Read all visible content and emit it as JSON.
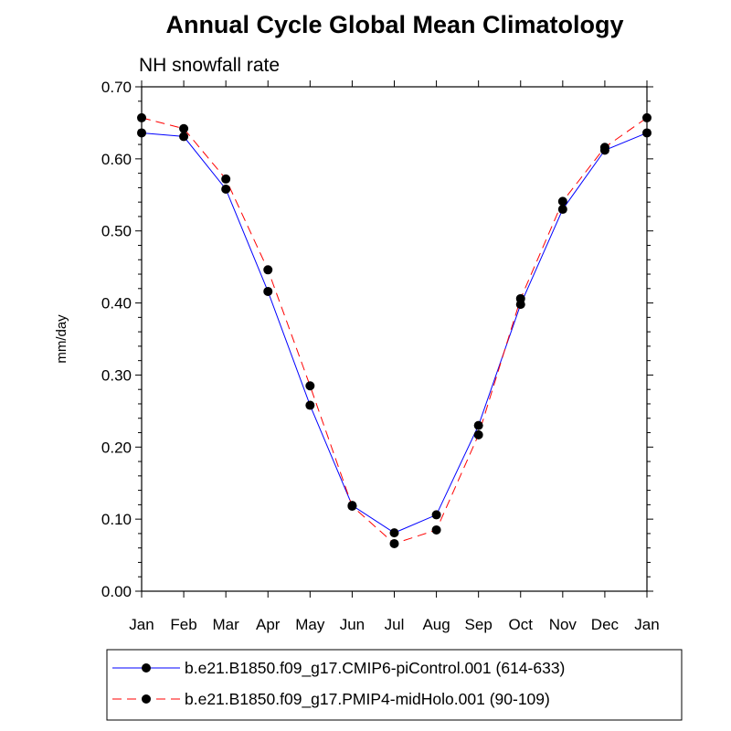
{
  "chart_data": {
    "type": "line",
    "title": "Annual Cycle Global Mean Climatology",
    "subtitle": "NH snowfall rate",
    "xlabel": "",
    "ylabel": "mm/day",
    "categories": [
      "Jan",
      "Feb",
      "Mar",
      "Apr",
      "May",
      "Jun",
      "Jul",
      "Aug",
      "Sep",
      "Oct",
      "Nov",
      "Dec",
      "Jan"
    ],
    "ylim": [
      0.0,
      0.7
    ],
    "yticks": [
      "0.00",
      "0.10",
      "0.20",
      "0.30",
      "0.40",
      "0.50",
      "0.60",
      "0.70"
    ],
    "grid": false,
    "legend_position": "bottom",
    "series": [
      {
        "name": "b.e21.B1850.f09_g17.CMIP6-piControl.001 (614-633)",
        "color": "#0000ff",
        "line_style": "solid",
        "marker": "circle",
        "values": [
          0.636,
          0.631,
          0.558,
          0.416,
          0.258,
          0.119,
          0.081,
          0.106,
          0.23,
          0.398,
          0.53,
          0.612,
          0.636
        ]
      },
      {
        "name": "b.e21.B1850.f09_g17.PMIP4-midHolo.001 (90-109)",
        "color": "#ff0000",
        "line_style": "dashed",
        "marker": "circle",
        "values": [
          0.657,
          0.642,
          0.572,
          0.446,
          0.285,
          0.118,
          0.066,
          0.085,
          0.217,
          0.406,
          0.541,
          0.616,
          0.657
        ]
      }
    ]
  }
}
